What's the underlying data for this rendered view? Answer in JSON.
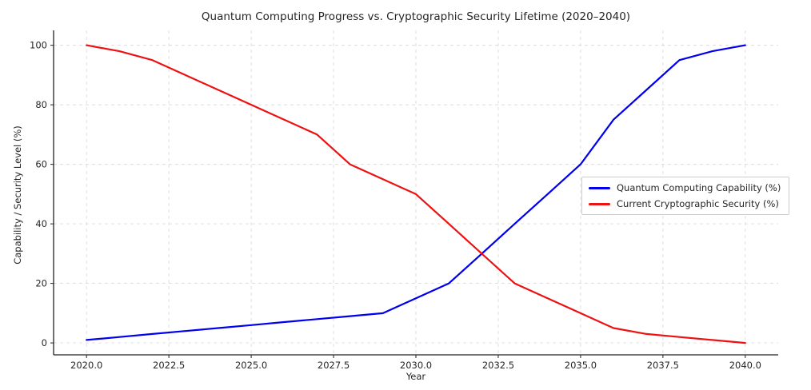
{
  "figure": {
    "title": "Quantum Computing Progress vs. Cryptographic Security Lifetime (2020–2040)",
    "xlabel": "Year",
    "ylabel": "Capability / Security Level (%)"
  },
  "chart_data": {
    "type": "line",
    "title": "Quantum Computing Progress vs. Cryptographic Security Lifetime (2020–2040)",
    "xlabel": "Year",
    "ylabel": "Capability / Security Level (%)",
    "x": [
      2020,
      2021,
      2022,
      2023,
      2024,
      2025,
      2026,
      2027,
      2028,
      2029,
      2030,
      2031,
      2032,
      2033,
      2034,
      2035,
      2036,
      2037,
      2038,
      2039,
      2040
    ],
    "series": [
      {
        "name": "Quantum Computing Capability (%)",
        "color": "#0000ee",
        "values": [
          1,
          2,
          3,
          4,
          5,
          6,
          7,
          8,
          9,
          10,
          15,
          20,
          30,
          40,
          50,
          60,
          75,
          85,
          95,
          98,
          100
        ]
      },
      {
        "name": "Current Cryptographic Security (%)",
        "color": "#ee1111",
        "values": [
          100,
          98,
          95,
          90,
          85,
          80,
          75,
          70,
          60,
          55,
          50,
          40,
          30,
          20,
          15,
          10,
          5,
          3,
          2,
          1,
          0
        ]
      }
    ],
    "xlim": [
      2019,
      2041
    ],
    "ylim": [
      -4,
      105
    ],
    "xticks": {
      "values": [
        2020,
        2022.5,
        2025,
        2027.5,
        2030,
        2032.5,
        2035,
        2037.5,
        2040
      ],
      "labels": [
        "2020.0",
        "2022.5",
        "2025.0",
        "2027.5",
        "2030.0",
        "2032.5",
        "2035.0",
        "2037.5",
        "2040.0"
      ]
    },
    "yticks": {
      "values": [
        0,
        20,
        40,
        60,
        80,
        100
      ],
      "labels": [
        "0",
        "20",
        "40",
        "60",
        "80",
        "100"
      ]
    },
    "grid": true,
    "grid_style": "dashed",
    "grid_color": "#dcdcdc",
    "spine_color": "#222222",
    "tick_label_color": "#262626",
    "background_color": "#ffffff",
    "legend_position": "center-right",
    "line_width": 2.2
  }
}
